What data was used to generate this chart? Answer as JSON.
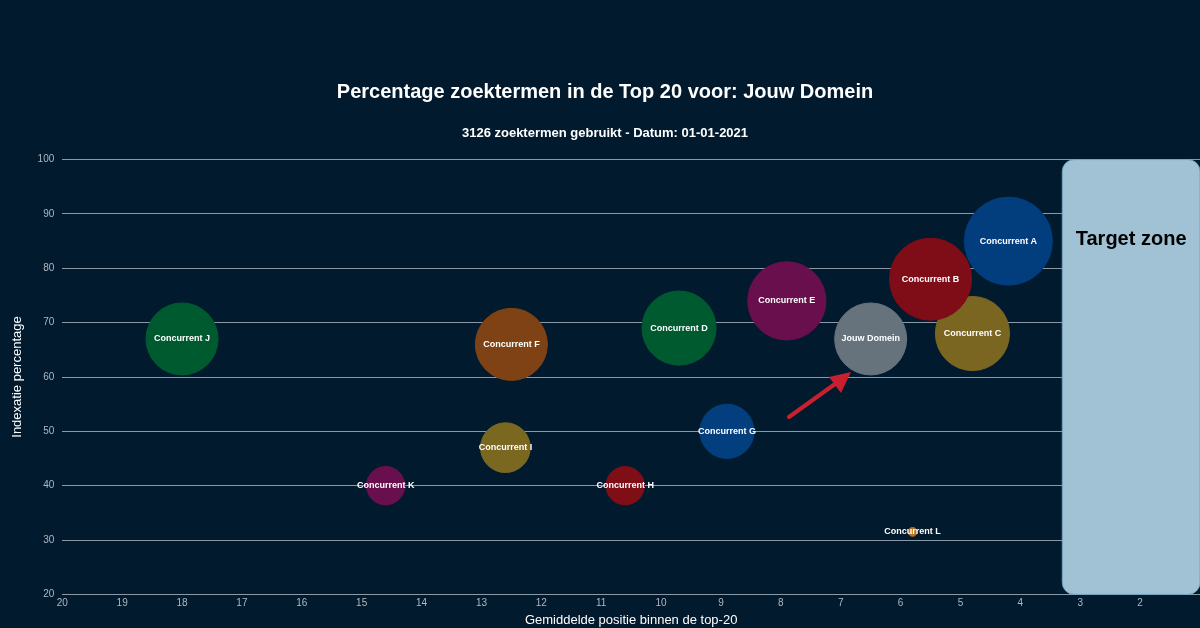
{
  "chart_data": {
    "type": "bubble",
    "title": "Percentage zoektermen in de Top 20 voor: Jouw Domein",
    "subtitle": "3126 zoektermen gebruikt - Datum: 01-01-2021",
    "xlabel": "Gemiddelde positie binnen de top-20",
    "ylabel": "Indexatie percentage",
    "xlim": [
      20,
      1
    ],
    "xticks": [
      20,
      19,
      18,
      17,
      16,
      15,
      14,
      13,
      12,
      11,
      10,
      9,
      8,
      7,
      6,
      5,
      4,
      3,
      2
    ],
    "ylim": [
      20,
      100
    ],
    "yticks": [
      20,
      30,
      40,
      50,
      60,
      70,
      80,
      90,
      100
    ],
    "grid": "y",
    "bands": [
      {
        "axis": "x",
        "from": 3.3,
        "to": 1,
        "label": "Target zone",
        "color": "#a1c2d5"
      }
    ],
    "series": [
      {
        "name": "Concurrent A",
        "color": "#023e7d",
        "x": [
          4.2
        ],
        "values": [
          85
        ],
        "sizes": [
          1
        ]
      },
      {
        "name": "Concurrent B",
        "color": "#7f0d17",
        "x": [
          5.5
        ],
        "values": [
          78
        ],
        "sizes": [
          0.87
        ]
      },
      {
        "name": "Concurrent C",
        "color": "#7a6620",
        "x": [
          4.8
        ],
        "values": [
          68
        ],
        "sizes": [
          0.71
        ]
      },
      {
        "name": "Concurrent D",
        "color": "#005a30",
        "x": [
          9.7
        ],
        "values": [
          69
        ],
        "sizes": [
          0.71
        ]
      },
      {
        "name": "Concurrent E",
        "color": "#6a0f4e",
        "x": [
          7.9
        ],
        "values": [
          74
        ],
        "sizes": [
          0.79
        ]
      },
      {
        "name": "Concurrent F",
        "color": "#7e4215",
        "x": [
          12.5
        ],
        "values": [
          66
        ],
        "sizes": [
          0.67
        ]
      },
      {
        "name": "Concurrent G",
        "color": "#033f7f",
        "x": [
          8.9
        ],
        "values": [
          50
        ],
        "sizes": [
          0.38
        ]
      },
      {
        "name": "Concurrent H",
        "color": "#800e17",
        "x": [
          10.6
        ],
        "values": [
          40
        ],
        "sizes": [
          0.19
        ]
      },
      {
        "name": "Concurrent I",
        "color": "#7a6720",
        "x": [
          12.6
        ],
        "values": [
          47
        ],
        "sizes": [
          0.32
        ]
      },
      {
        "name": "Concurrent J",
        "color": "#005a30",
        "x": [
          18
        ],
        "values": [
          67
        ],
        "sizes": [
          0.67
        ]
      },
      {
        "name": "Concurrent K",
        "color": "#6a0f4e",
        "x": [
          14.6
        ],
        "values": [
          40
        ],
        "sizes": [
          0.19
        ]
      },
      {
        "name": "Concurrent L",
        "color": "#b8741a",
        "x": [
          5.8
        ],
        "values": [
          31.5
        ],
        "sizes": [
          0.01
        ]
      },
      {
        "name": "Jouw Domein",
        "color": "#66737d",
        "x": [
          6.5
        ],
        "values": [
          67
        ],
        "sizes": [
          0.67
        ]
      }
    ]
  }
}
